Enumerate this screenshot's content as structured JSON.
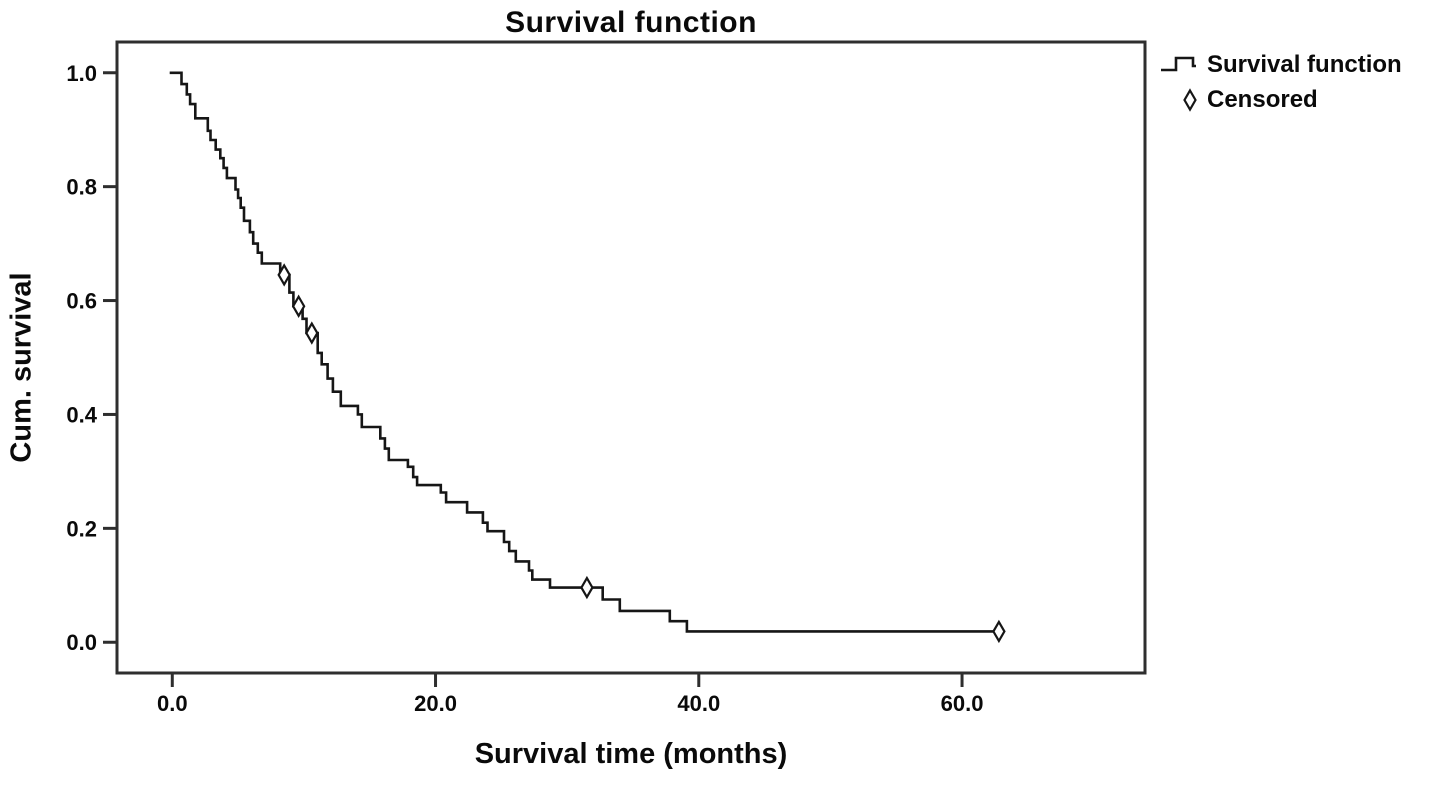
{
  "title": "Survival function",
  "legend": {
    "items": [
      {
        "label": "Survival function",
        "icon": "step-line-icon"
      },
      {
        "label": "Censored",
        "icon": "diamond-icon"
      }
    ],
    "position": "top-right-outside"
  },
  "colors": {
    "line": "#161616",
    "frame": "#2e2e2e",
    "text": "#0a0a0a",
    "marker_fill": "#ffffff",
    "background": "#ffffff"
  },
  "chart_data": {
    "type": "line",
    "subtype": "kaplan-meier-step",
    "title": "Survival function",
    "xlabel": "Survival time (months)",
    "ylabel": "Cum. survival",
    "xlim": [
      -4.2,
      73.9
    ],
    "ylim": [
      -0.054,
      1.054
    ],
    "grid": false,
    "legend_position": "upper right outside",
    "xtick_values": [
      0,
      20,
      40,
      60
    ],
    "xtick_labels": [
      "0.0",
      "20.0",
      "40.0",
      "60.0"
    ],
    "ytick_values": [
      0.0,
      0.2,
      0.4,
      0.6,
      0.8,
      1.0
    ],
    "ytick_labels": [
      "0.0",
      "0.2",
      "0.4",
      "0.6",
      "0.8",
      "1.0"
    ],
    "series": [
      {
        "name": "Survival function",
        "step": true,
        "points": [
          [
            -0.2,
            1.0
          ],
          [
            0.7,
            0.98
          ],
          [
            1.1,
            0.962
          ],
          [
            1.35,
            0.945
          ],
          [
            1.75,
            0.92
          ],
          [
            2.7,
            0.898
          ],
          [
            2.9,
            0.882
          ],
          [
            3.3,
            0.865
          ],
          [
            3.65,
            0.85
          ],
          [
            3.9,
            0.833
          ],
          [
            4.15,
            0.815
          ],
          [
            4.8,
            0.795
          ],
          [
            5.0,
            0.78
          ],
          [
            5.2,
            0.763
          ],
          [
            5.45,
            0.74
          ],
          [
            5.9,
            0.72
          ],
          [
            6.15,
            0.7
          ],
          [
            6.5,
            0.684
          ],
          [
            6.8,
            0.665
          ],
          [
            8.2,
            0.645
          ],
          [
            8.9,
            0.614
          ],
          [
            9.2,
            0.59
          ],
          [
            9.9,
            0.568
          ],
          [
            10.2,
            0.543
          ],
          [
            11.05,
            0.508
          ],
          [
            11.35,
            0.488
          ],
          [
            11.8,
            0.463
          ],
          [
            12.2,
            0.44
          ],
          [
            12.8,
            0.415
          ],
          [
            14.1,
            0.4
          ],
          [
            14.4,
            0.378
          ],
          [
            15.8,
            0.358
          ],
          [
            16.15,
            0.34
          ],
          [
            16.45,
            0.32
          ],
          [
            17.9,
            0.308
          ],
          [
            18.3,
            0.29
          ],
          [
            18.6,
            0.276
          ],
          [
            20.4,
            0.263
          ],
          [
            20.8,
            0.246
          ],
          [
            22.4,
            0.228
          ],
          [
            23.6,
            0.21
          ],
          [
            23.95,
            0.195
          ],
          [
            25.2,
            0.176
          ],
          [
            25.6,
            0.16
          ],
          [
            26.1,
            0.142
          ],
          [
            27.1,
            0.126
          ],
          [
            27.35,
            0.11
          ],
          [
            28.7,
            0.096
          ],
          [
            32.7,
            0.075
          ],
          [
            34.0,
            0.055
          ],
          [
            37.8,
            0.037
          ],
          [
            39.1,
            0.019
          ],
          [
            62.8,
            0.019
          ]
        ]
      }
    ],
    "censored_points": [
      [
        8.5,
        0.645
      ],
      [
        9.6,
        0.59
      ],
      [
        10.6,
        0.543
      ],
      [
        31.5,
        0.096
      ],
      [
        62.8,
        0.019
      ]
    ]
  }
}
